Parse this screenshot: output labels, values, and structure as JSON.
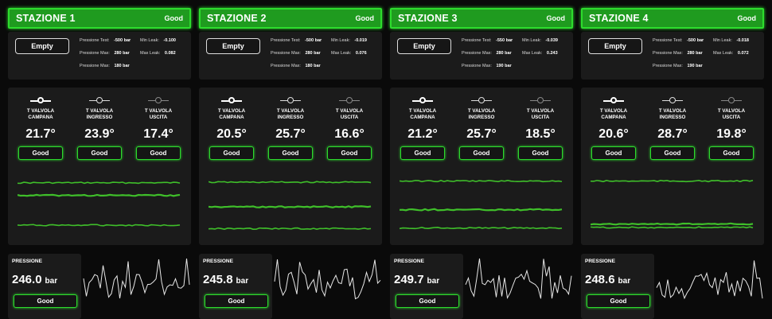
{
  "labels": {
    "pressione_test": "Pressione Test:",
    "pressione_max": "Pressione Max:",
    "min_leak": "Min Leak:",
    "max_leak": "Max Leak:",
    "pressione": "PRESSIONE",
    "unit": "bar",
    "empty": "Empty"
  },
  "sensor_names": [
    [
      "T VALVOLA",
      "CAMPANA"
    ],
    [
      "T VALVOLA",
      "INGRESSO"
    ],
    [
      "T VALVOLA",
      "USCITA"
    ]
  ],
  "colors": {
    "accent": "#1f9b1f",
    "accent_border": "#2ddc2d",
    "panel": "#1b1b1b",
    "trend_line": "#3fbf2a"
  },
  "stations": [
    {
      "name": "STAZIONE 1",
      "status": "Good",
      "pressione_test": "-500 bar",
      "pressione_max_1": "280 bar",
      "pressione_max_2": "180 bar",
      "min_leak": "-0.100",
      "max_leak": "0.082",
      "temps": [
        "21.7°",
        "23.9°",
        "17.4°"
      ],
      "temp_status": [
        "Good",
        "Good",
        "Good"
      ],
      "pressure": "246.0",
      "pressure_status": "Good",
      "trend_levels": [
        0.08,
        0.3,
        0.82
      ]
    },
    {
      "name": "STAZIONE 2",
      "status": "Good",
      "pressione_test": "-500 bar",
      "pressione_max_1": "280 bar",
      "pressione_max_2": "180 bar",
      "min_leak": "-0.019",
      "max_leak": "0.076",
      "temps": [
        "20.5°",
        "25.7°",
        "16.6°"
      ],
      "temp_status": [
        "Good",
        "Good",
        "Good"
      ],
      "pressure": "245.8",
      "pressure_status": "Good",
      "trend_levels": [
        0.07,
        0.5,
        0.88
      ]
    },
    {
      "name": "STAZIONE 3",
      "status": "Good",
      "pressione_test": "-550 bar",
      "pressione_max_1": "280 bar",
      "pressione_max_2": "190 bar",
      "min_leak": "-0.039",
      "max_leak": "0.243",
      "temps": [
        "21.2°",
        "25.7°",
        "18.5°"
      ],
      "temp_status": [
        "Good",
        "Good",
        "Good"
      ],
      "pressure": "249.7",
      "pressure_status": "Good",
      "trend_levels": [
        0.05,
        0.55,
        0.87
      ]
    },
    {
      "name": "STAZIONE 4",
      "status": "Good",
      "pressione_test": "-500 bar",
      "pressione_max_1": "280 bar",
      "pressione_max_2": "190 bar",
      "min_leak": "-0.018",
      "max_leak": "0.072",
      "temps": [
        "20.6°",
        "28.7°",
        "19.8°"
      ],
      "temp_status": [
        "Good",
        "Good",
        "Good"
      ],
      "pressure": "248.6",
      "pressure_status": "Good",
      "trend_levels": [
        0.05,
        0.8,
        0.86
      ]
    }
  ]
}
